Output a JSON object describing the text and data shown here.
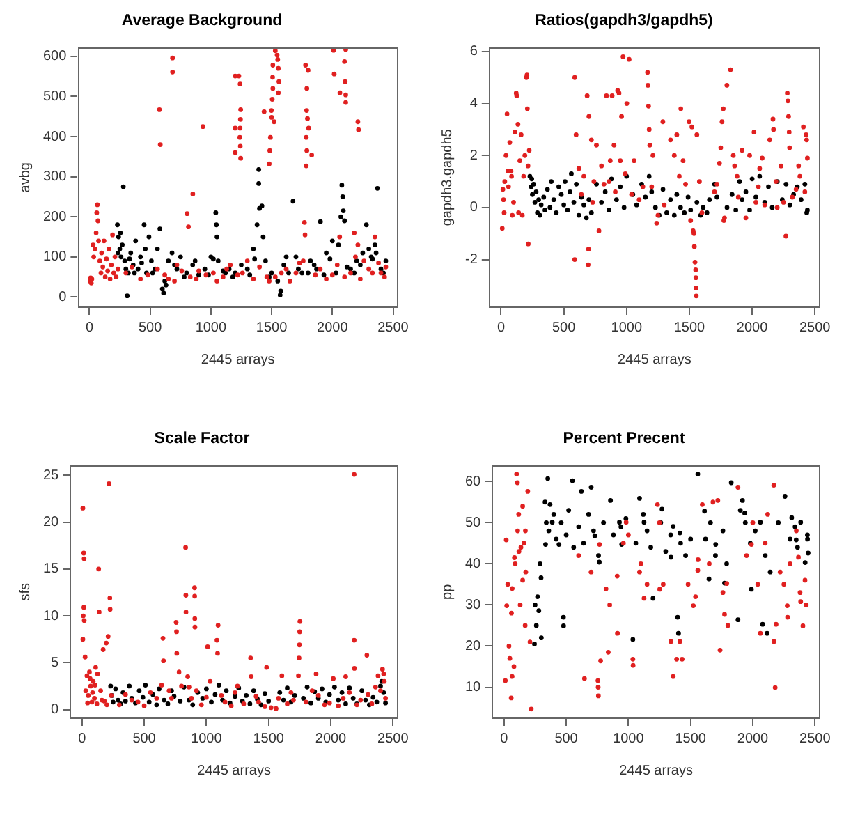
{
  "chart_data": [
    {
      "type": "scatter",
      "title": "Average Background",
      "xlabel": "2445 arrays",
      "ylabel": "avbg",
      "xlim": [
        -98,
        2543
      ],
      "ylim": [
        -27,
        623
      ],
      "xticks": [
        0,
        500,
        1000,
        1500,
        2000,
        2500
      ],
      "yticks": [
        0,
        100,
        200,
        300,
        400,
        500,
        600
      ],
      "grid": false,
      "legend": false,
      "marker": "circle",
      "series": [
        {
          "color": "#e02020",
          "x": [
            5,
            10,
            15,
            20,
            30,
            35,
            45,
            55,
            60,
            65,
            70,
            75,
            85,
            95,
            100,
            110,
            120,
            130,
            140,
            150,
            160,
            170,
            180,
            190,
            200,
            210,
            220,
            235,
            576,
            583,
            684,
            684,
            804,
            815,
            851,
            934,
            1200,
            1230,
            1240,
            1245,
            1243,
            1240,
            1238,
            1242,
            1245,
            1200,
            1200,
            1438,
            1480,
            1485,
            1490,
            1500,
            1498,
            1505,
            1510,
            1508,
            1510,
            1530,
            1545,
            1550,
            1555,
            1560,
            1555,
            1520,
            1779,
            1800,
            1790,
            1788,
            1795,
            1785,
            1790,
            1785,
            1805,
            1830,
            1770,
            1775,
            2010,
            2110,
            2015,
            2062,
            2100,
            2105,
            2110,
            2110,
            2210,
            2215,
            300,
            420,
            560,
            620,
            700,
            760,
            830,
            880,
            960,
            1020,
            1100,
            1160,
            1260,
            1300,
            1350,
            1460,
            1480,
            1620,
            1700,
            1760,
            1860,
            1950,
            2040,
            2060,
            2150,
            2190,
            2230,
            2300,
            2350,
            2400,
            2430,
            2440,
            2180,
            2210,
            350,
            480,
            650,
            720,
            900,
            1050,
            1130,
            1220,
            1400,
            1530,
            1580,
            1650,
            1730,
            1900,
            2000,
            2100,
            2260,
            2330,
            2380
          ],
          "values": [
            40,
            48,
            35,
            45,
            130,
            100,
            120,
            160,
            210,
            230,
            190,
            140,
            90,
            60,
            110,
            75,
            140,
            50,
            95,
            65,
            120,
            45,
            80,
            155,
            60,
            100,
            50,
            70,
            467,
            380,
            596,
            561,
            208,
            175,
            257,
            425,
            551,
            551,
            531,
            467,
            443,
            421,
            398,
            376,
            346,
            421,
            360,
            462,
            332,
            365,
            398,
            448,
            465,
            493,
            520,
            548,
            578,
            614,
            603,
            592,
            570,
            537,
            509,
            437,
            578,
            565,
            520,
            465,
            445,
            398,
            365,
            327,
            421,
            354,
            186,
            155,
            615,
            617,
            556,
            509,
            587,
            537,
            504,
            485,
            437,
            417,
            60,
            45,
            70,
            55,
            40,
            65,
            50,
            45,
            55,
            60,
            50,
            80,
            60,
            90,
            45,
            50,
            40,
            70,
            60,
            90,
            55,
            45,
            80,
            150,
            60,
            100,
            45,
            70,
            150,
            60,
            50,
            75,
            160,
            130,
            75,
            55,
            45,
            80,
            65,
            40,
            70,
            55,
            75,
            50,
            60,
            40,
            85,
            70,
            55,
            50,
            90,
            60,
            85
          ]
        },
        {
          "color": "#000000",
          "x": [
            230,
            240,
            250,
            260,
            270,
            279,
            290,
            311,
            320,
            340,
            360,
            380,
            400,
            420,
            450,
            470,
            490,
            510,
            540,
            560,
            580,
            600,
            610,
            620,
            650,
            680,
            720,
            750,
            800,
            850,
            900,
            950,
            1000,
            1040,
            1045,
            1050,
            1060,
            1100,
            1150,
            1200,
            1250,
            1300,
            1350,
            1380,
            1394,
            1394,
            1400,
            1420,
            1430,
            1450,
            1500,
            1550,
            1570,
            1575,
            1600,
            1640,
            1676,
            1700,
            1750,
            1820,
            1870,
            1902,
            1950,
            2000,
            2030,
            2070,
            2078,
            2085,
            2090,
            2100,
            2150,
            2200,
            2250,
            2280,
            2300,
            2320,
            2350,
            2371,
            2400,
            2440,
            235,
            255,
            300,
            330,
            370,
            430,
            460,
            520,
            630,
            700,
            780,
            870,
            980,
            1020,
            1120,
            1180,
            1320,
            1360,
            1480,
            1620,
            1720,
            1800,
            1850,
            1930,
            1980,
            2050,
            2120,
            2180,
            2230,
            2330,
            2360,
            2420
          ],
          "values": [
            180,
            150,
            120,
            100,
            130,
            275,
            90,
            3,
            60,
            110,
            80,
            140,
            70,
            100,
            180,
            60,
            150,
            90,
            70,
            120,
            170,
            20,
            10,
            40,
            90,
            110,
            70,
            100,
            60,
            80,
            55,
            70,
            100,
            210,
            180,
            150,
            90,
            65,
            70,
            60,
            80,
            70,
            120,
            180,
            318,
            283,
            221,
            227,
            150,
            90,
            60,
            40,
            5,
            15,
            80,
            60,
            239,
            100,
            60,
            90,
            70,
            188,
            110,
            140,
            60,
            200,
            279,
            250,
            215,
            190,
            70,
            90,
            110,
            180,
            120,
            100,
            130,
            271,
            70,
            90,
            110,
            160,
            70,
            95,
            60,
            85,
            120,
            60,
            30,
            80,
            50,
            90,
            55,
            95,
            60,
            50,
            55,
            95,
            50,
            100,
            70,
            60,
            80,
            55,
            95,
            130,
            75,
            60,
            80,
            95,
            110,
            60
          ]
        }
      ]
    },
    {
      "type": "scatter",
      "title": "Ratios(gapdh3/gapdh5)",
      "xlabel": "2445 arrays",
      "ylabel": "gapdh3.gapdh5",
      "xlim": [
        -98,
        2543
      ],
      "ylim": [
        -3.86,
        6.17
      ],
      "xticks": [
        0,
        500,
        1000,
        1500,
        2000,
        2500
      ],
      "yticks": [
        -2,
        0,
        2,
        4,
        6
      ],
      "grid": false,
      "legend": false,
      "marker": "circle",
      "series": [
        {
          "color": "#e02020",
          "x": [
            10,
            15,
            20,
            25,
            30,
            40,
            48,
            55,
            60,
            70,
            80,
            84,
            90,
            100,
            110,
            121,
            125,
            135,
            140,
            150,
            160,
            170,
            180,
            190,
            202,
            207,
            210,
            215,
            217,
            225,
            587,
            587,
            598,
            620,
            686,
            694,
            697,
            700,
            740,
            760,
            780,
            800,
            840,
            860,
            885,
            900,
            929,
            940,
            950,
            960,
            972,
            1002,
            1020,
            1040,
            1100,
            1167,
            1170,
            1175,
            1180,
            1185,
            1200,
            1240,
            1289,
            1300,
            1380,
            1432,
            1400,
            1450,
            1498,
            1510,
            1520,
            1530,
            1537,
            1540,
            1545,
            1550,
            1552,
            1553,
            1555,
            1560,
            1580,
            1700,
            1740,
            1750,
            1760,
            1770,
            1775,
            1799,
            1828,
            1850,
            1880,
            1920,
            1950,
            2015,
            2030,
            2060,
            2100,
            2166,
            2170,
            2190,
            2200,
            2269,
            2280,
            2285,
            2290,
            2295,
            2298,
            2320,
            2380,
            2408,
            2420,
            2434,
            2440,
            2430,
            640,
            660,
            720,
            730,
            820,
            870,
            910,
            990,
            1060,
            1130,
            1210,
            1250,
            1350,
            1420,
            1470,
            1600,
            1720,
            1780,
            1860,
            1890,
            1980,
            2050,
            2080,
            2140,
            2230,
            2250,
            2350,
            2370
          ],
          "values": [
            -0.8,
            0.7,
            0.3,
            -0.2,
            1.0,
            2.0,
            3.6,
            1.4,
            0.8,
            2.5,
            1.4,
            1.2,
            -0.3,
            0.2,
            2.9,
            4.4,
            4.3,
            3.2,
            -0.2,
            1.8,
            2.8,
            -0.3,
            1.2,
            2.0,
            5.0,
            5.1,
            3.8,
            1.6,
            -1.4,
            2.2,
            5.0,
            -2.0,
            2.8,
            1.5,
            4.3,
            -2.2,
            -1.6,
            3.5,
            1.0,
            2.4,
            -0.9,
            1.6,
            4.3,
            1.0,
            4.3,
            2.4,
            4.5,
            4.4,
            1.8,
            3.5,
            5.8,
            4.0,
            5.7,
            0.5,
            0.3,
            5.2,
            4.7,
            3.9,
            3.0,
            2.4,
            0.8,
            -0.6,
            3.3,
            0.1,
            2.0,
            3.8,
            2.8,
            1.8,
            3.3,
            -0.5,
            3.1,
            -0.9,
            -1.0,
            -1.5,
            -2.1,
            -2.4,
            -2.7,
            -3.1,
            -3.4,
            2.8,
            1.0,
            0.6,
            1.7,
            2.3,
            3.3,
            3.8,
            -0.5,
            4.7,
            5.3,
            2.0,
            1.2,
            2.2,
            -0.4,
            2.9,
            0.2,
            1.5,
            0.1,
            3.4,
            3.0,
            1.0,
            0.0,
            -1.1,
            4.4,
            4.1,
            3.5,
            2.9,
            2.3,
            0.4,
            1.2,
            3.1,
            0.6,
            2.6,
            1.9,
            2.8,
            0.5,
            1.2,
            2.6,
            0.2,
            0.9,
            1.8,
            0.6,
            1.3,
            1.8,
            0.8,
            2.0,
            -0.3,
            2.6,
            1.2,
            0.9,
            -0.2,
            0.9,
            -0.4,
            1.6,
            0.4,
            2.0,
            0.8,
            1.9,
            2.6,
            1.6,
            0.2,
            0.7,
            1.6
          ]
        },
        {
          "color": "#000000",
          "x": [
            230,
            240,
            245,
            250,
            260,
            270,
            280,
            290,
            300,
            310,
            320,
            340,
            350,
            370,
            390,
            400,
            420,
            440,
            460,
            480,
            500,
            510,
            530,
            550,
            560,
            580,
            600,
            620,
            640,
            660,
            680,
            700,
            720,
            760,
            800,
            830,
            860,
            880,
            920,
            950,
            980,
            1000,
            1050,
            1080,
            1120,
            1150,
            1180,
            1200,
            1230,
            1260,
            1290,
            1320,
            1350,
            1380,
            1400,
            1430,
            1460,
            1490,
            1510,
            1560,
            1590,
            1610,
            1640,
            1660,
            1700,
            1720,
            1800,
            1840,
            1870,
            1900,
            1920,
            1950,
            1980,
            2000,
            2030,
            2060,
            2100,
            2130,
            2160,
            2200,
            2240,
            2270,
            2300,
            2330,
            2360,
            2390,
            2420,
            2440,
            2435
          ],
          "values": [
            1.2,
            0.8,
            1.1,
            0.5,
            0.9,
            0.2,
            0.6,
            -0.2,
            0.3,
            -0.3,
            0.1,
            0.4,
            -0.1,
            0.7,
            0.0,
            1.0,
            0.3,
            -0.2,
            0.8,
            0.5,
            0.1,
            1.0,
            -0.1,
            0.6,
            1.3,
            0.2,
            0.9,
            -0.3,
            0.4,
            0.1,
            -0.4,
            0.3,
            -0.2,
            0.9,
            0.2,
            0.6,
            -0.1,
            1.1,
            0.3,
            0.8,
            0.0,
            1.2,
            0.5,
            0.1,
            0.9,
            0.4,
            1.2,
            0.6,
            0.0,
            -0.3,
            0.7,
            -0.2,
            0.3,
            -0.3,
            0.5,
            0.0,
            -0.2,
            0.4,
            -0.1,
            0.2,
            -0.3,
            0.0,
            -0.2,
            0.3,
            0.9,
            0.4,
            0.0,
            0.5,
            -0.1,
            1.0,
            0.3,
            0.6,
            -0.1,
            1.1,
            0.4,
            1.2,
            0.2,
            0.8,
            0.0,
            1.0,
            0.3,
            0.9,
            0.1,
            0.5,
            0.8,
            0.3,
            0.9,
            -0.1,
            -0.2
          ]
        }
      ]
    },
    {
      "type": "scatter",
      "title": "Scale Factor",
      "xlabel": "2445 arrays",
      "ylabel": "sfs",
      "xlim": [
        -98,
        2543
      ],
      "ylim": [
        -1,
        26.1
      ],
      "xticks": [
        0,
        500,
        1000,
        1500,
        2000,
        2500
      ],
      "yticks": [
        0,
        5,
        10,
        15,
        20,
        25
      ],
      "grid": false,
      "legend": false,
      "marker": "circle",
      "series": [
        {
          "color": "#e02020",
          "x": [
            7,
            14,
            17,
            7,
            10,
            18,
            15,
            25,
            40,
            50,
            60,
            70,
            80,
            90,
            100,
            110,
            120,
            134,
            138,
            150,
            170,
            180,
            195,
            210,
            217,
            224,
            226,
            235,
            300,
            400,
            500,
            600,
            651,
            655,
            700,
            757,
            760,
            762,
            780,
            800,
            833,
            835,
            836,
            850,
            880,
            905,
            906,
            907,
            908,
            920,
            960,
            1010,
            1030,
            1085,
            1090,
            1094,
            1120,
            1200,
            1250,
            1300,
            1355,
            1360,
            1420,
            1484,
            1520,
            1560,
            1607,
            1650,
            1700,
            1740,
            1745,
            1748,
            1750,
            1752,
            1800,
            1882,
            1900,
            1950,
            2020,
            2060,
            2120,
            2150,
            2188,
            2188,
            2190,
            2240,
            2290,
            2330,
            2380,
            2400,
            2416,
            2430,
            2440,
            30,
            45,
            65,
            85,
            105,
            125,
            160,
            200,
            350,
            450,
            550,
            640,
            720,
            860,
            1000,
            1150,
            1230,
            1400,
            1470,
            1580,
            1680,
            1850,
            1990,
            2100,
            2210,
            2300,
            2360,
            2425
          ],
          "values": [
            21.5,
            16.7,
            16.1,
            7.5,
            10.0,
            9.5,
            10.9,
            5.6,
            3.6,
            1.5,
            4.0,
            2.5,
            0.8,
            3.0,
            1.2,
            4.5,
            0.6,
            15.0,
            10.4,
            2.0,
            6.4,
            0.9,
            7.1,
            7.8,
            24.1,
            11.9,
            10.7,
            1.5,
            0.5,
            1.0,
            0.4,
            1.2,
            7.6,
            5.2,
            2.0,
            9.3,
            8.3,
            6.0,
            4.0,
            2.5,
            17.3,
            12.2,
            10.4,
            3.5,
            1.2,
            13.0,
            12.1,
            9.7,
            8.8,
            2.0,
            0.5,
            6.7,
            3.0,
            7.4,
            6.0,
            9.0,
            1.5,
            0.4,
            2.5,
            0.6,
            5.5,
            3.5,
            0.8,
            4.5,
            0.2,
            0.1,
            3.6,
            0.6,
            1.0,
            3.6,
            5.5,
            6.9,
            8.3,
            9.4,
            0.8,
            3.8,
            1.5,
            0.5,
            3.3,
            0.4,
            3.5,
            1.8,
            25.1,
            7.4,
            4.4,
            1.0,
            5.8,
            0.6,
            3.6,
            2.0,
            4.3,
            3.0,
            1.2,
            2.0,
            0.7,
            3.3,
            1.8,
            2.6,
            3.8,
            1.0,
            0.5,
            1.6,
            0.8,
            1.8,
            2.6,
            1.2,
            2.4,
            1.3,
            0.8,
            1.8,
            1.4,
            0.3,
            1.2,
            1.8,
            2.0,
            0.7,
            1.2,
            0.5,
            1.6,
            2.4,
            3.8
          ]
        },
        {
          "color": "#000000",
          "x": [
            230,
            240,
            250,
            270,
            290,
            310,
            330,
            350,
            380,
            400,
            430,
            460,
            490,
            510,
            540,
            570,
            600,
            620,
            660,
            690,
            720,
            740,
            790,
            820,
            860,
            890,
            930,
            970,
            1000,
            1040,
            1070,
            1100,
            1130,
            1160,
            1190,
            1230,
            1260,
            1290,
            1320,
            1350,
            1380,
            1410,
            1440,
            1470,
            1500,
            1590,
            1620,
            1650,
            1680,
            1710,
            1780,
            1810,
            1840,
            1870,
            1900,
            1930,
            1960,
            1990,
            2030,
            2060,
            2090,
            2120,
            2150,
            2180,
            2210,
            2250,
            2280,
            2310,
            2340,
            2370,
            2400,
            2410,
            2425,
            2440
          ],
          "values": [
            2.5,
            1.5,
            0.8,
            2.2,
            1.0,
            0.6,
            1.8,
            0.9,
            2.5,
            1.2,
            0.7,
            2.0,
            1.3,
            2.6,
            0.8,
            1.6,
            0.5,
            2.2,
            1.0,
            0.6,
            2.0,
            1.4,
            0.9,
            2.4,
            1.0,
            0.5,
            1.8,
            1.2,
            2.2,
            0.8,
            1.6,
            2.6,
            1.0,
            2.0,
            0.7,
            1.4,
            2.3,
            0.9,
            1.5,
            0.6,
            2.0,
            1.1,
            0.5,
            1.7,
            0.9,
            1.8,
            1.0,
            2.3,
            0.8,
            1.5,
            1.2,
            2.4,
            0.7,
            1.9,
            1.2,
            2.2,
            0.8,
            1.6,
            2.4,
            1.0,
            1.8,
            0.6,
            2.3,
            1.2,
            0.6,
            2.0,
            1.0,
            0.5,
            1.3,
            0.8,
            2.5,
            3.0,
            1.8,
            0.7
          ]
        }
      ]
    },
    {
      "type": "scatter",
      "title": "Percent Precent",
      "xlabel": "2445 arrays",
      "ylabel": "pp",
      "xlim": [
        -98,
        2543
      ],
      "ylim": [
        2.3,
        64
      ],
      "xticks": [
        0,
        500,
        1000,
        1500,
        2000,
        2500
      ],
      "yticks": [
        10,
        20,
        30,
        40,
        50,
        60
      ],
      "grid": false,
      "legend": false,
      "marker": "circle",
      "series": [
        {
          "color": "#e02020",
          "x": [
            11,
            18,
            22,
            47,
            58,
            65,
            101,
            108,
            118,
            136,
            150,
            170,
            209,
            219,
            191,
            172,
            84,
            66,
            30,
            40,
            60,
            80,
            90,
            110,
            120,
            130,
            150,
            160,
            175,
            647,
            755,
            759,
            757,
            777,
            838,
            820,
            768,
            910,
            912,
            982,
            1036,
            1038,
            1090,
            1126,
            1234,
            1252,
            1342,
            1360,
            1388,
            1414,
            1432,
            1522,
            1558,
            1594,
            1719,
            1737,
            1773,
            1791,
            1881,
            1989,
            2061,
            2169,
            2180,
            2170,
            2187,
            2277,
            2280,
            2367,
            2403,
            2385,
            2420,
            600,
            700,
            850,
            960,
            1000,
            1100,
            1150,
            1250,
            1280,
            1480,
            1540,
            1560,
            1650,
            1680,
            1760,
            1800,
            1950,
            2000,
            2040,
            2100,
            2120,
            2220,
            2250,
            2300,
            2350,
            2380,
            2430
          ],
          "values": [
            11.6,
            45.8,
            29.8,
            17.0,
            7.4,
            12.6,
            61.8,
            59.7,
            52.0,
            44.0,
            36.0,
            25.0,
            21.0,
            4.7,
            57.6,
            48.0,
            41.5,
            34.0,
            35.0,
            20.0,
            28.0,
            15.0,
            40.0,
            48.0,
            43.0,
            30.0,
            54.0,
            45.0,
            38.0,
            12.1,
            11.6,
            7.9,
            10.0,
            16.4,
            18.5,
            33.9,
            44.7,
            37.0,
            23.1,
            50.1,
            16.8,
            15.3,
            38.0,
            31.6,
            54.4,
            33.8,
            21.1,
            12.6,
            16.8,
            21.1,
            16.8,
            29.8,
            38.4,
            54.4,
            55.4,
            19.0,
            27.7,
            35.2,
            58.6,
            44.7,
            23.1,
            59.1,
            9.9,
            21.1,
            25.3,
            29.8,
            27.0,
            41.6,
            24.9,
            30.8,
            36.0,
            42.0,
            38.0,
            30.0,
            45.0,
            47.0,
            40.0,
            35.0,
            50.0,
            35.0,
            35.0,
            32.0,
            41.0,
            40.0,
            55.0,
            33.0,
            25.0,
            42.0,
            50.0,
            35.0,
            45.0,
            52.0,
            38.0,
            35.0,
            40.0,
            48.0,
            33.0,
            30.0
          ]
        },
        {
          "color": "#000000",
          "x": [
            245,
            280,
            298,
            334,
            352,
            370,
            388,
            442,
            478,
            479,
            550,
            622,
            701,
            730,
            766,
            856,
            928,
            946,
            1036,
            1090,
            1126,
            1198,
            1270,
            1342,
            1360,
            1396,
            1403,
            1414,
            1558,
            1612,
            1648,
            1702,
            1773,
            1827,
            1881,
            1917,
            1935,
            1989,
            2061,
            2079,
            2115,
            2205,
            2259,
            2313,
            2349,
            2385,
            2421,
            2439,
            2445,
            330,
            340,
            360,
            400,
            420,
            460,
            500,
            520,
            560,
            600,
            640,
            680,
            720,
            760,
            800,
            880,
            940,
            980,
            1060,
            1120,
            1150,
            1180,
            1260,
            1300,
            1340,
            1420,
            1460,
            1500,
            1620,
            1660,
            1700,
            1760,
            1790,
            1900,
            1940,
            1980,
            2020,
            2100,
            2140,
            2300,
            2340,
            2360,
            2440,
            260,
            270,
            290,
            250,
            300
          ],
          "values": [
            20.5,
            28.6,
            36.6,
            44.7,
            60.7,
            54.4,
            50.1,
            44.7,
            27.0,
            24.9,
            60.2,
            57.6,
            58.6,
            46.8,
            40.4,
            55.4,
            50.1,
            44.7,
            21.6,
            55.9,
            50.1,
            31.6,
            53.3,
            41.6,
            49.1,
            27.0,
            23.1,
            47.5,
            61.8,
            52.8,
            36.3,
            44.7,
            35.3,
            59.7,
            26.4,
            55.4,
            52.3,
            33.8,
            50.1,
            25.3,
            23.1,
            50.0,
            56.4,
            51.2,
            45.8,
            50.1,
            40.3,
            47.0,
            42.6,
            55.0,
            50.0,
            48.0,
            52.0,
            46.0,
            50.0,
            47.0,
            53.0,
            44.0,
            49.0,
            45.0,
            52.0,
            48.0,
            42.0,
            50.0,
            47.0,
            49.0,
            51.0,
            45.0,
            52.0,
            48.0,
            44.0,
            50.0,
            43.0,
            47.0,
            45.0,
            42.0,
            46.0,
            46.0,
            50.0,
            42.0,
            48.0,
            40.0,
            53.0,
            50.0,
            45.0,
            48.0,
            42.0,
            38.0,
            46.0,
            49.0,
            44.0,
            46.0,
            25.0,
            32.0,
            40.0,
            30.0,
            22.0
          ]
        }
      ]
    }
  ]
}
